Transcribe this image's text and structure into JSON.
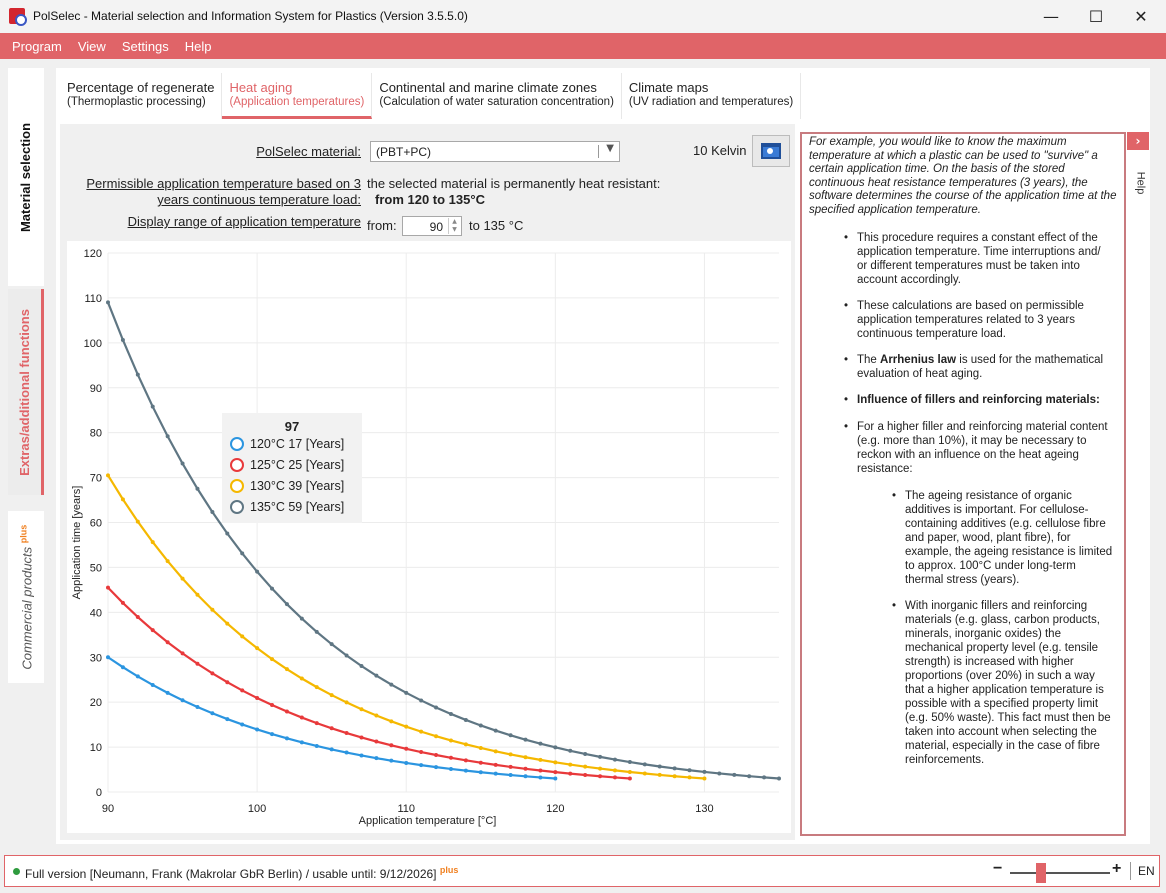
{
  "window": {
    "title": "PolSelec - Material selection and Information System for Plastics (Version 3.5.5.0)",
    "minimize": "—",
    "maximize": "☐",
    "close": "✕"
  },
  "menu": [
    "Program",
    "View",
    "Settings",
    "Help"
  ],
  "side_tabs": {
    "material_selection": "Material selection",
    "extras": "Extras/additional functions",
    "commercial": "Commercial products",
    "commercial_sup": "plus"
  },
  "tabs": [
    {
      "line1": "Percentage of regenerate",
      "line2": "(Thermoplastic processing)"
    },
    {
      "line1": "Heat aging",
      "line2": "(Application temperatures)"
    },
    {
      "line1": "Continental and marine climate zones",
      "line2": "(Calculation of water saturation concentration)"
    },
    {
      "line1": "Climate maps",
      "line2": "(UV radiation and temperatures)"
    }
  ],
  "form": {
    "material_label": "PolSelec material:",
    "material_value": "(PBT+PC)",
    "kelvin": "10 Kelvin",
    "permissible_label_1": "Permissible application temperature based on 3",
    "permissible_label_2": "years continuous temperature load:",
    "permissible_text": "the selected material is permanently heat resistant:",
    "permissible_range": "from 120 to 135°C",
    "display_range_label": "Display range of application temperature",
    "from_label": "from:",
    "from_value": "90",
    "to_label": "to 135 °C"
  },
  "chart_data": {
    "type": "line",
    "xlabel": "Application temperature [°C]",
    "ylabel": "Application time [years]",
    "xlim": [
      90,
      135
    ],
    "ylim": [
      0,
      120
    ],
    "xticks": [
      90,
      100,
      110,
      120,
      130
    ],
    "yticks": [
      0,
      10,
      20,
      30,
      40,
      50,
      60,
      70,
      80,
      90,
      100,
      110,
      120
    ],
    "grid": true,
    "series": [
      {
        "name": "120°C",
        "color": "#2b95e0",
        "x_start": 90,
        "x_end": 120,
        "y_at_90": 30,
        "y_at_end": 3
      },
      {
        "name": "125°C",
        "color": "#e8393b",
        "x_start": 90,
        "x_end": 125,
        "y_at_90": 45.5,
        "y_at_end": 3
      },
      {
        "name": "130°C",
        "color": "#f5b800",
        "x_start": 90,
        "x_end": 130,
        "y_at_90": 70.5,
        "y_at_end": 3
      },
      {
        "name": "135°C",
        "color": "#5f7683",
        "x_start": 90,
        "x_end": 135,
        "y_at_90": 109,
        "y_at_end": 3
      }
    ],
    "tooltip": {
      "title": "97",
      "rows": [
        {
          "label": "120°C 17 [Years]",
          "color": "#2b95e0"
        },
        {
          "label": "125°C 25 [Years]",
          "color": "#e8393b"
        },
        {
          "label": "130°C 39 [Years]",
          "color": "#f5b800"
        },
        {
          "label": "135°C 59 [Years]",
          "color": "#5f7683"
        }
      ]
    }
  },
  "help": {
    "tab_label": "Help",
    "intro": "For example, you would like to know the maximum temperature at which a plastic can be used to \"survive\" a certain application time. On the basis of the stored continuous heat resistance temperatures (3 years), the software determines the course of the application time at the specified application temperature.",
    "b1": "This procedure requires a constant effect of the application temperature. Time interruptions and/ or different temperatures must be taken into account accordingly.",
    "b2": "These calculations are based on permissible application temperatures related to 3 years continuous temperature load.",
    "b3_pre": "The ",
    "b3_bold": "Arrhenius law",
    "b3_post": " is used for the mathematical evaluation of heat aging.",
    "b4_bold": "Influence of fillers and reinforcing materials:",
    "b4_text": "For a higher filler and reinforcing material content (e.g. more than 10%), it may be necessary to reckon with an influence on the heat ageing resistance:",
    "s1": "The ageing resistance of organic additives is important. For cellulose-containing additives (e.g. cellulose fibre and paper, wood, plant fibre), for example, the ageing resistance is limited to approx. 100°C under long-term thermal stress (years).",
    "s2": "With inorganic fillers and reinforcing materials (e.g. glass, carbon products, minerals, inorganic oxides) the mechanical property level (e.g. tensile strength) is increased with higher proportions (over 20%) in such a way that a higher application temperature is possible with a specified property limit (e.g. 50% waste). This fact must then be taken into account when selecting the material, especially in the case of fibre reinforcements."
  },
  "status": {
    "text": "Full version [Neumann, Frank (Makrolar GbR Berlin) / usable until: 9/12/2026]",
    "sup": "plus",
    "zoom_minus": "−",
    "zoom_plus": "+",
    "language": "EN"
  }
}
